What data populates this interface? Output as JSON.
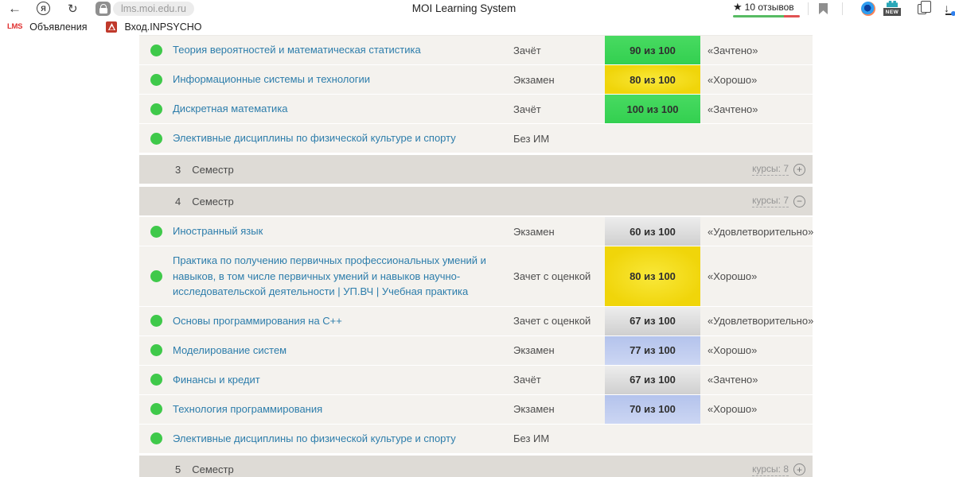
{
  "window": {
    "title": "MOI Learning System"
  },
  "toolbar": {
    "url": "lms.moi.edu.ru",
    "reviews": {
      "star": "★",
      "label": "10 отзывов"
    },
    "icons": {
      "back": "←",
      "profile_letter": "Я",
      "refresh": "↻",
      "new_badge": "NEW",
      "download": "↓"
    }
  },
  "bookmarks_bar": {
    "items": [
      {
        "favicon_text": "LMS",
        "label": "Объявления"
      },
      {
        "favicon_text": "",
        "label": "Вход.INPSYCHO"
      }
    ]
  },
  "icons": {
    "plus": "+",
    "minus": "−"
  },
  "colors": {
    "score_green": "#3ed65a",
    "score_yellow": "#f2da12",
    "score_gray": "#dcdcdc",
    "score_blue": "#bcc9ef",
    "status_dot_green": "#3fc94a",
    "rating_green": "#57bb63",
    "rating_red": "#e05252",
    "course_link_blue": "#2d7dab",
    "semester_header_bg": "#dedbd6",
    "row_bg": "#f4f2ee"
  },
  "table": {
    "rows": [
      {
        "type": "course",
        "name": "Теория вероятностей и математическая статистика",
        "control": "Зачёт",
        "score": "90 из 100",
        "score_color": "green",
        "grade": "«Зачтено»"
      },
      {
        "type": "course",
        "name": "Информационные системы и технологии",
        "control": "Экзамен",
        "score": "80 из 100",
        "score_color": "yellow",
        "grade": "«Хорошо»"
      },
      {
        "type": "course",
        "name": "Дискретная математика",
        "control": "Зачёт",
        "score": "100 из 100",
        "score_color": "green",
        "grade": "«Зачтено»"
      },
      {
        "type": "course",
        "name": "Элективные дисциплины по физической культуре и спорту",
        "control": "Без ИМ",
        "score": "",
        "score_color": "none",
        "grade": ""
      },
      {
        "type": "semester",
        "number": "3",
        "label": "Семестр",
        "courses_label": "курсы: 7",
        "expand": "plus"
      },
      {
        "type": "semester",
        "number": "4",
        "label": "Семестр",
        "courses_label": "курсы: 7",
        "expand": "minus"
      },
      {
        "type": "course",
        "name": "Иностранный язык",
        "control": "Экзамен",
        "score": "60 из 100",
        "score_color": "gray",
        "grade": "«Удовлетворительно»"
      },
      {
        "type": "course",
        "name": "Практика по получению первичных профессиональных умений и навыков, в том числе первичных умений и навыков научно-исследовательской деятельности | УП.ВЧ | Учебная практика",
        "control": "Зачет с оценкой",
        "score": "80 из 100",
        "score_color": "yellow",
        "grade": "«Хорошо»"
      },
      {
        "type": "course",
        "name": "Основы программирования на C++",
        "control": "Зачет с оценкой",
        "score": "67 из 100",
        "score_color": "gray",
        "grade": "«Удовлетворительно»"
      },
      {
        "type": "course",
        "name": "Моделирование систем",
        "control": "Экзамен",
        "score": "77 из 100",
        "score_color": "blue",
        "grade": "«Хорошо»"
      },
      {
        "type": "course",
        "name": "Финансы и кредит",
        "control": "Зачёт",
        "score": "67 из 100",
        "score_color": "gray",
        "grade": "«Зачтено»"
      },
      {
        "type": "course",
        "name": "Технология программирования",
        "control": "Экзамен",
        "score": "70 из 100",
        "score_color": "blue",
        "grade": "«Хорошо»"
      },
      {
        "type": "course",
        "name": "Элективные дисциплины по физической культуре и спорту",
        "control": "Без ИМ",
        "score": "",
        "score_color": "none",
        "grade": ""
      },
      {
        "type": "semester",
        "number": "5",
        "label": "Семестр",
        "courses_label": "курсы: 8",
        "expand": "plus"
      }
    ]
  }
}
